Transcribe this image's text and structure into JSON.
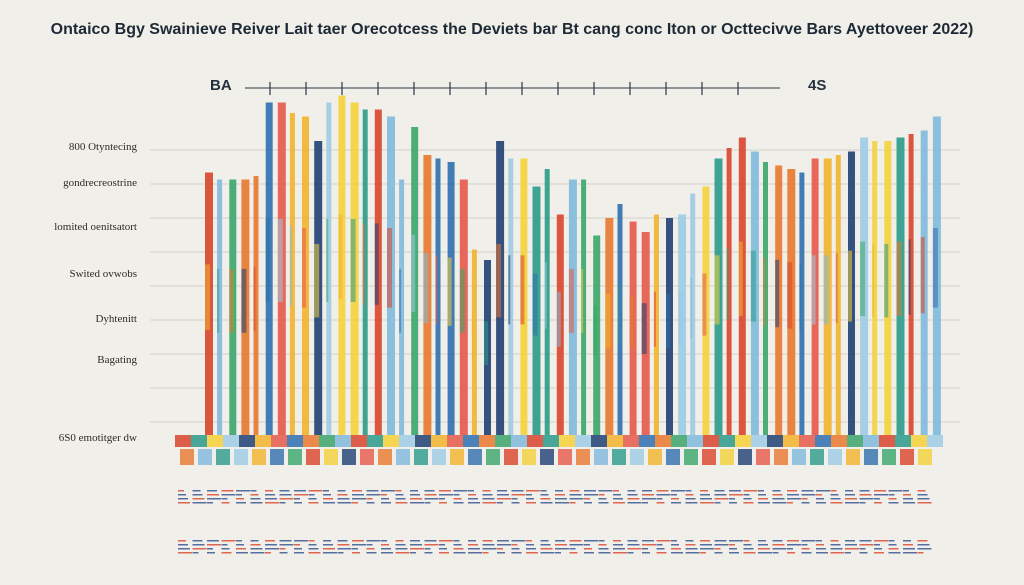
{
  "chart_data": {
    "type": "bar",
    "title": "Ontaico Bgy Swainieve Reiver Lait taer Orecotcess the Deviets bar Bt cang conc Iton or Octtecivve Bars Ayettoveer 2022)",
    "corner_left": "BA",
    "corner_right": "4S",
    "y_labels": [
      "800 Otyntecing",
      "gondrecreostrine",
      "lomited oenitsatort",
      "Swited ovwobs",
      "Dyhtenitt",
      "Bagating",
      "6S0 emotitger dw"
    ],
    "ylim": [
      0,
      100
    ],
    "grid": true,
    "values": [
      75,
      73,
      73,
      73,
      74,
      95,
      95,
      92,
      91,
      84,
      95,
      97,
      95,
      93,
      93,
      91,
      73,
      88,
      80,
      79,
      78,
      73,
      53,
      50,
      84,
      79,
      79,
      71,
      76,
      63,
      73,
      73,
      57,
      62,
      66,
      61,
      58,
      63,
      62,
      63,
      69,
      71,
      79,
      82,
      85,
      81,
      78,
      77,
      76,
      75,
      79,
      79,
      80,
      81,
      85,
      84,
      84,
      85,
      86,
      87,
      91
    ]
  },
  "colors": {
    "palette": [
      "#d9442b",
      "#e8782e",
      "#f2b32c",
      "#f4d13a",
      "#7fb9dd",
      "#2f6fae",
      "#1f3f73",
      "#2a9a8a",
      "#3aa56a",
      "#e6594a",
      "#9dcbe4"
    ]
  }
}
